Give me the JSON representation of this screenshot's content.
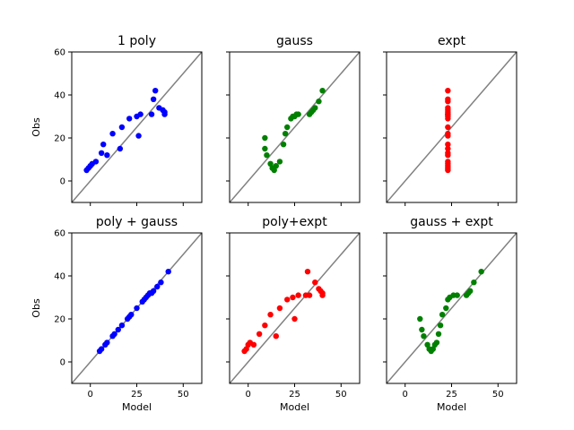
{
  "chart_data": [
    {
      "type": "scatter",
      "title": "1 poly",
      "xlabel": "",
      "ylabel": "Obs",
      "color": "#0000ff",
      "xlim": [
        -10,
        60
      ],
      "ylim": [
        -10,
        60
      ],
      "xticks": [
        0,
        25,
        50
      ],
      "yticks": [
        0,
        20,
        40,
        60
      ],
      "show_xticklabels": false,
      "show_yticklabels": true,
      "identity_line": true,
      "x": [
        -2,
        -1,
        0,
        1,
        3,
        6,
        7,
        9,
        12,
        16,
        17,
        21,
        25,
        26,
        27,
        33,
        35,
        34,
        37,
        39,
        40,
        40
      ],
      "y": [
        5,
        6,
        7,
        8,
        9,
        13,
        17,
        12,
        22,
        15,
        25,
        29,
        30,
        21,
        31,
        31,
        42,
        38,
        34,
        33,
        32,
        31
      ]
    },
    {
      "type": "scatter",
      "title": "gauss",
      "xlabel": "",
      "ylabel": "",
      "color": "#008000",
      "xlim": [
        -10,
        60
      ],
      "ylim": [
        -10,
        60
      ],
      "xticks": [
        0,
        25,
        50
      ],
      "yticks": [
        0,
        20,
        40,
        60
      ],
      "show_xticklabels": false,
      "show_yticklabels": false,
      "identity_line": true,
      "x": [
        9,
        9,
        10,
        12,
        13,
        14,
        15,
        17,
        19,
        20,
        21,
        23,
        24,
        25,
        26,
        27,
        33,
        34,
        35,
        36,
        38,
        40
      ],
      "y": [
        20,
        15,
        12,
        8,
        6,
        5,
        7,
        9,
        17,
        22,
        25,
        29,
        30,
        30,
        31,
        31,
        31,
        32,
        33,
        34,
        37,
        42
      ]
    },
    {
      "type": "scatter",
      "title": "expt",
      "xlabel": "",
      "ylabel": "",
      "color": "#ff0000",
      "xlim": [
        -10,
        60
      ],
      "ylim": [
        -10,
        60
      ],
      "xticks": [
        0,
        25,
        50
      ],
      "yticks": [
        0,
        20,
        40,
        60
      ],
      "show_xticklabels": false,
      "show_yticklabels": false,
      "identity_line": true,
      "x": [
        23,
        23,
        23,
        23,
        23,
        23,
        23,
        23,
        23,
        23,
        23,
        23,
        23,
        23,
        23,
        23,
        23,
        23,
        23,
        23,
        23,
        23
      ],
      "y": [
        5,
        6,
        7,
        8,
        9,
        12,
        13,
        15,
        17,
        21,
        22,
        25,
        29,
        30,
        31,
        31,
        32,
        33,
        34,
        37,
        38,
        42
      ]
    },
    {
      "type": "scatter",
      "title": "poly + gauss",
      "xlabel": "Model",
      "ylabel": "Obs",
      "color": "#0000ff",
      "xlim": [
        -10,
        60
      ],
      "ylim": [
        -10,
        60
      ],
      "xticks": [
        0,
        25,
        50
      ],
      "yticks": [
        0,
        20,
        40,
        60
      ],
      "show_xticklabels": true,
      "show_yticklabels": true,
      "identity_line": true,
      "x": [
        5,
        6,
        8,
        9,
        12,
        13,
        15,
        17,
        20,
        21,
        22,
        25,
        28,
        29,
        30,
        31,
        32,
        33,
        34,
        36,
        38,
        42
      ],
      "y": [
        5,
        6,
        8,
        9,
        12,
        13,
        15,
        17,
        20,
        21,
        22,
        25,
        28,
        29,
        30,
        31,
        32,
        32,
        33,
        35,
        37,
        42
      ]
    },
    {
      "type": "scatter",
      "title": "poly+expt",
      "xlabel": "Model",
      "ylabel": "",
      "color": "#ff0000",
      "xlim": [
        -10,
        60
      ],
      "ylim": [
        -10,
        60
      ],
      "xticks": [
        0,
        25,
        50
      ],
      "yticks": [
        0,
        20,
        40,
        60
      ],
      "show_xticklabels": true,
      "show_yticklabels": false,
      "identity_line": true,
      "x": [
        -2,
        -1,
        0,
        1,
        3,
        6,
        9,
        12,
        15,
        17,
        21,
        24,
        25,
        27,
        31,
        32,
        33,
        36,
        38,
        39,
        40,
        40
      ],
      "y": [
        5,
        6,
        8,
        9,
        8,
        13,
        17,
        22,
        12,
        25,
        29,
        30,
        20,
        31,
        31,
        42,
        31,
        37,
        34,
        33,
        32,
        31
      ]
    },
    {
      "type": "scatter",
      "title": "gauss + expt",
      "xlabel": "Model",
      "ylabel": "",
      "color": "#008000",
      "xlim": [
        -10,
        60
      ],
      "ylim": [
        -10,
        60
      ],
      "xticks": [
        0,
        25,
        50
      ],
      "yticks": [
        0,
        20,
        40,
        60
      ],
      "show_xticklabels": true,
      "show_yticklabels": false,
      "identity_line": true,
      "x": [
        8,
        9,
        10,
        12,
        13,
        14,
        15,
        16,
        17,
        18,
        19,
        20,
        22,
        23,
        24,
        26,
        28,
        33,
        34,
        35,
        37,
        41
      ],
      "y": [
        20,
        15,
        12,
        8,
        6,
        5,
        6,
        8,
        9,
        13,
        17,
        22,
        25,
        29,
        30,
        31,
        31,
        31,
        32,
        33,
        37,
        42
      ]
    }
  ]
}
